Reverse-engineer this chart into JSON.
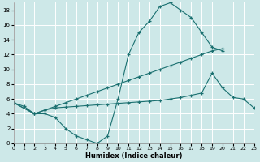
{
  "xlabel": "Humidex (Indice chaleur)",
  "bg_color": "#cde8e8",
  "grid_color": "#ffffff",
  "line_color": "#1a7070",
  "line1_x": [
    0,
    1,
    2,
    3,
    4,
    5,
    6,
    7,
    8,
    9,
    10,
    11,
    12,
    13,
    14,
    15,
    16,
    17,
    18,
    19,
    20
  ],
  "line1_y": [
    5.5,
    5.0,
    4.0,
    4.0,
    3.5,
    2.0,
    1.0,
    0.5,
    0.0,
    1.0,
    6.0,
    12.0,
    15.0,
    16.5,
    18.5,
    19.0,
    18.0,
    17.0,
    15.0,
    13.0,
    12.5
  ],
  "line2_x": [
    0,
    2,
    3,
    4,
    5,
    6,
    7,
    8,
    9,
    10,
    11,
    12,
    13,
    14,
    15,
    16,
    17,
    18,
    19,
    20
  ],
  "line2_y": [
    5.5,
    4.0,
    4.5,
    5.0,
    5.5,
    6.0,
    6.5,
    7.0,
    7.5,
    8.0,
    8.5,
    9.0,
    9.5,
    10.0,
    10.5,
    11.0,
    11.5,
    12.0,
    12.5,
    12.8
  ],
  "line3_x": [
    0,
    2,
    3,
    4,
    5,
    6,
    7,
    8,
    9,
    10,
    11,
    12,
    13,
    14,
    15,
    16,
    17,
    18,
    19,
    20,
    21,
    22,
    23
  ],
  "line3_y": [
    5.5,
    4.0,
    4.5,
    4.8,
    4.9,
    5.0,
    5.1,
    5.2,
    5.3,
    5.4,
    5.5,
    5.6,
    5.7,
    5.8,
    6.0,
    6.2,
    6.5,
    6.8,
    9.5,
    7.5,
    6.2,
    6.0,
    4.8
  ],
  "xlim": [
    0,
    23
  ],
  "ylim": [
    0,
    19
  ],
  "yticks": [
    0,
    2,
    4,
    6,
    8,
    10,
    12,
    14,
    16,
    18
  ],
  "xticks": [
    0,
    1,
    2,
    3,
    4,
    5,
    6,
    7,
    8,
    9,
    10,
    11,
    12,
    13,
    14,
    15,
    16,
    17,
    18,
    19,
    20,
    21,
    22,
    23
  ]
}
